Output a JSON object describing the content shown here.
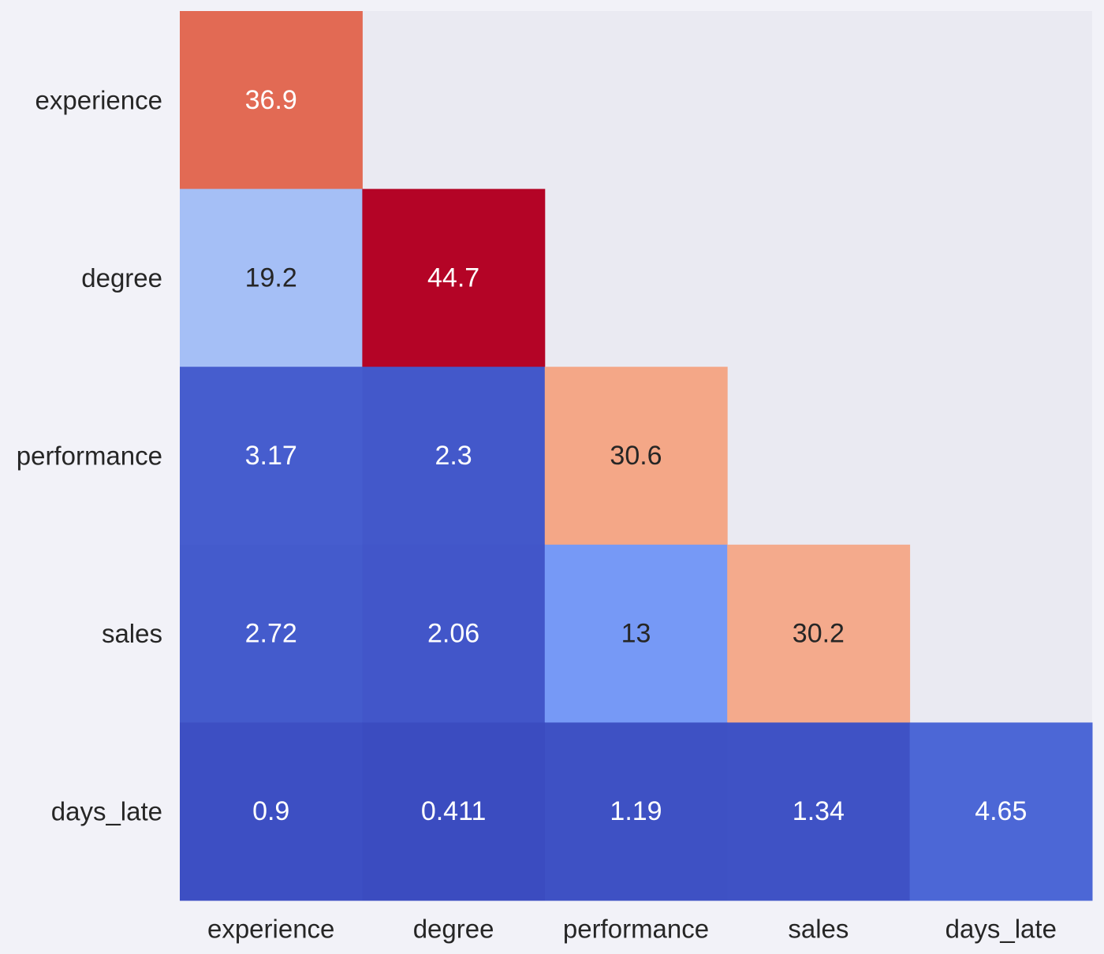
{
  "chart_data": {
    "type": "heatmap",
    "variant": "lower-triangle",
    "colormap": "coolwarm",
    "value_range": [
      0.411,
      44.7
    ],
    "rows": [
      "experience",
      "degree",
      "performance",
      "sales",
      "days_late"
    ],
    "cols": [
      "experience",
      "degree",
      "performance",
      "sales",
      "days_late"
    ],
    "values": [
      [
        36.9,
        null,
        null,
        null,
        null
      ],
      [
        19.2,
        44.7,
        null,
        null,
        null
      ],
      [
        3.17,
        2.3,
        30.6,
        null,
        null
      ],
      [
        2.72,
        2.06,
        13,
        30.2,
        null
      ],
      [
        0.9,
        0.411,
        1.19,
        1.34,
        4.65
      ]
    ],
    "labels": [
      [
        "36.9",
        "",
        "",
        "",
        ""
      ],
      [
        "19.2",
        "44.7",
        "",
        "",
        ""
      ],
      [
        "3.17",
        "2.3",
        "30.6",
        "",
        ""
      ],
      [
        "2.72",
        "2.06",
        "13",
        "30.2",
        ""
      ],
      [
        "0.9",
        "0.411",
        "1.19",
        "1.34",
        "4.65"
      ]
    ],
    "masked_color": "#eaeaf2",
    "grid": false,
    "legend": "none"
  }
}
